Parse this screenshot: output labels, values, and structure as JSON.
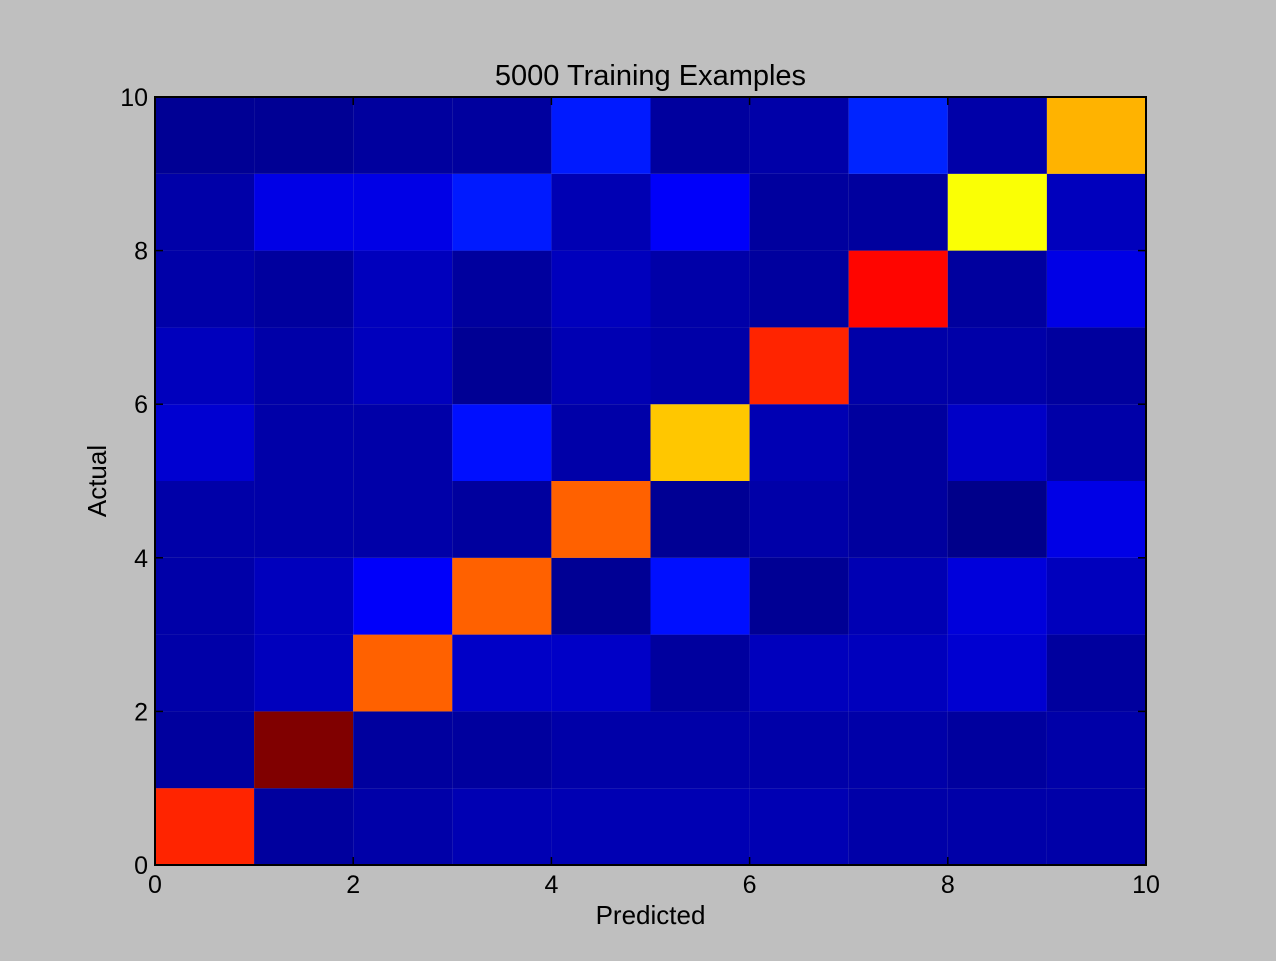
{
  "chart_data": {
    "type": "heatmap",
    "title": "5000 Training Examples",
    "xlabel": "Predicted",
    "ylabel": "Actual",
    "xlim": [
      0,
      10
    ],
    "ylim": [
      0,
      10
    ],
    "xticks": [
      "0",
      "2",
      "4",
      "6",
      "8",
      "10"
    ],
    "yticks": [
      "0",
      "2",
      "4",
      "6",
      "8",
      "10"
    ],
    "colormap": "jet",
    "grid": false,
    "legend": "none",
    "matrix_rows_bottom_to_top": [
      [
        0.84,
        0.03,
        0.04,
        0.05,
        0.05,
        0.05,
        0.05,
        0.04,
        0.04,
        0.04
      ],
      [
        0.03,
        1.0,
        0.03,
        0.03,
        0.04,
        0.04,
        0.04,
        0.04,
        0.03,
        0.04
      ],
      [
        0.04,
        0.06,
        0.78,
        0.07,
        0.07,
        0.03,
        0.06,
        0.06,
        0.08,
        0.03
      ],
      [
        0.04,
        0.06,
        0.12,
        0.78,
        0.02,
        0.14,
        0.02,
        0.05,
        0.09,
        0.06
      ],
      [
        0.04,
        0.04,
        0.04,
        0.03,
        0.78,
        0.02,
        0.04,
        0.03,
        0.01,
        0.1
      ],
      [
        0.08,
        0.04,
        0.04,
        0.14,
        0.04,
        0.68,
        0.05,
        0.03,
        0.07,
        0.04
      ],
      [
        0.06,
        0.04,
        0.06,
        0.02,
        0.05,
        0.04,
        0.84,
        0.04,
        0.04,
        0.03
      ],
      [
        0.04,
        0.03,
        0.06,
        0.03,
        0.06,
        0.04,
        0.03,
        0.87,
        0.03,
        0.1
      ],
      [
        0.04,
        0.1,
        0.1,
        0.15,
        0.05,
        0.12,
        0.03,
        0.03,
        0.62,
        0.06
      ],
      [
        0.02,
        0.02,
        0.03,
        0.03,
        0.15,
        0.03,
        0.04,
        0.16,
        0.04,
        0.7
      ]
    ]
  }
}
